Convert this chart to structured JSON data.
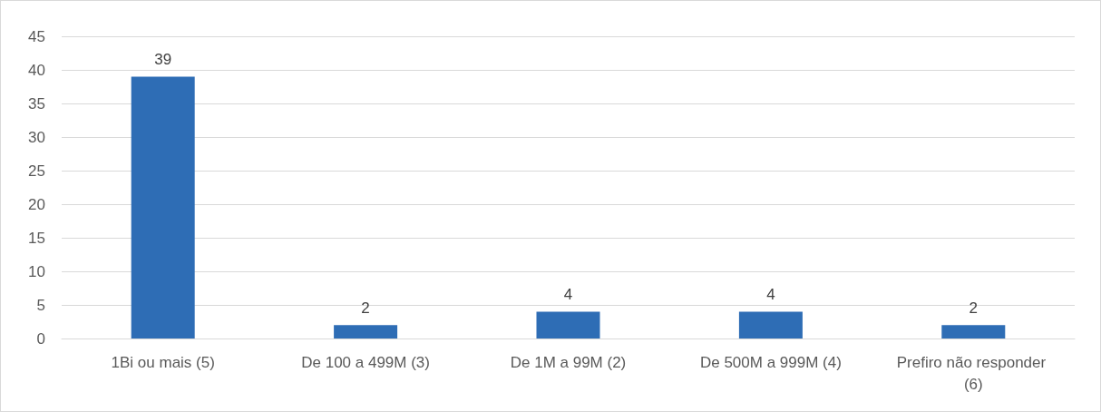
{
  "chart_data": {
    "type": "bar",
    "categories": [
      "1Bi ou mais (5)",
      "De 100 a 499M (3)",
      "De 1M a 99M (2)",
      "De 500M a 999M (4)",
      "Prefiro não responder (6)"
    ],
    "values": [
      39,
      2,
      4,
      4,
      2
    ],
    "color": "#2e6db5",
    "ylim": [
      0,
      45
    ],
    "yticks": [
      0,
      5,
      10,
      15,
      20,
      25,
      30,
      35,
      40,
      45
    ],
    "grid": "y",
    "data_labels": true
  }
}
